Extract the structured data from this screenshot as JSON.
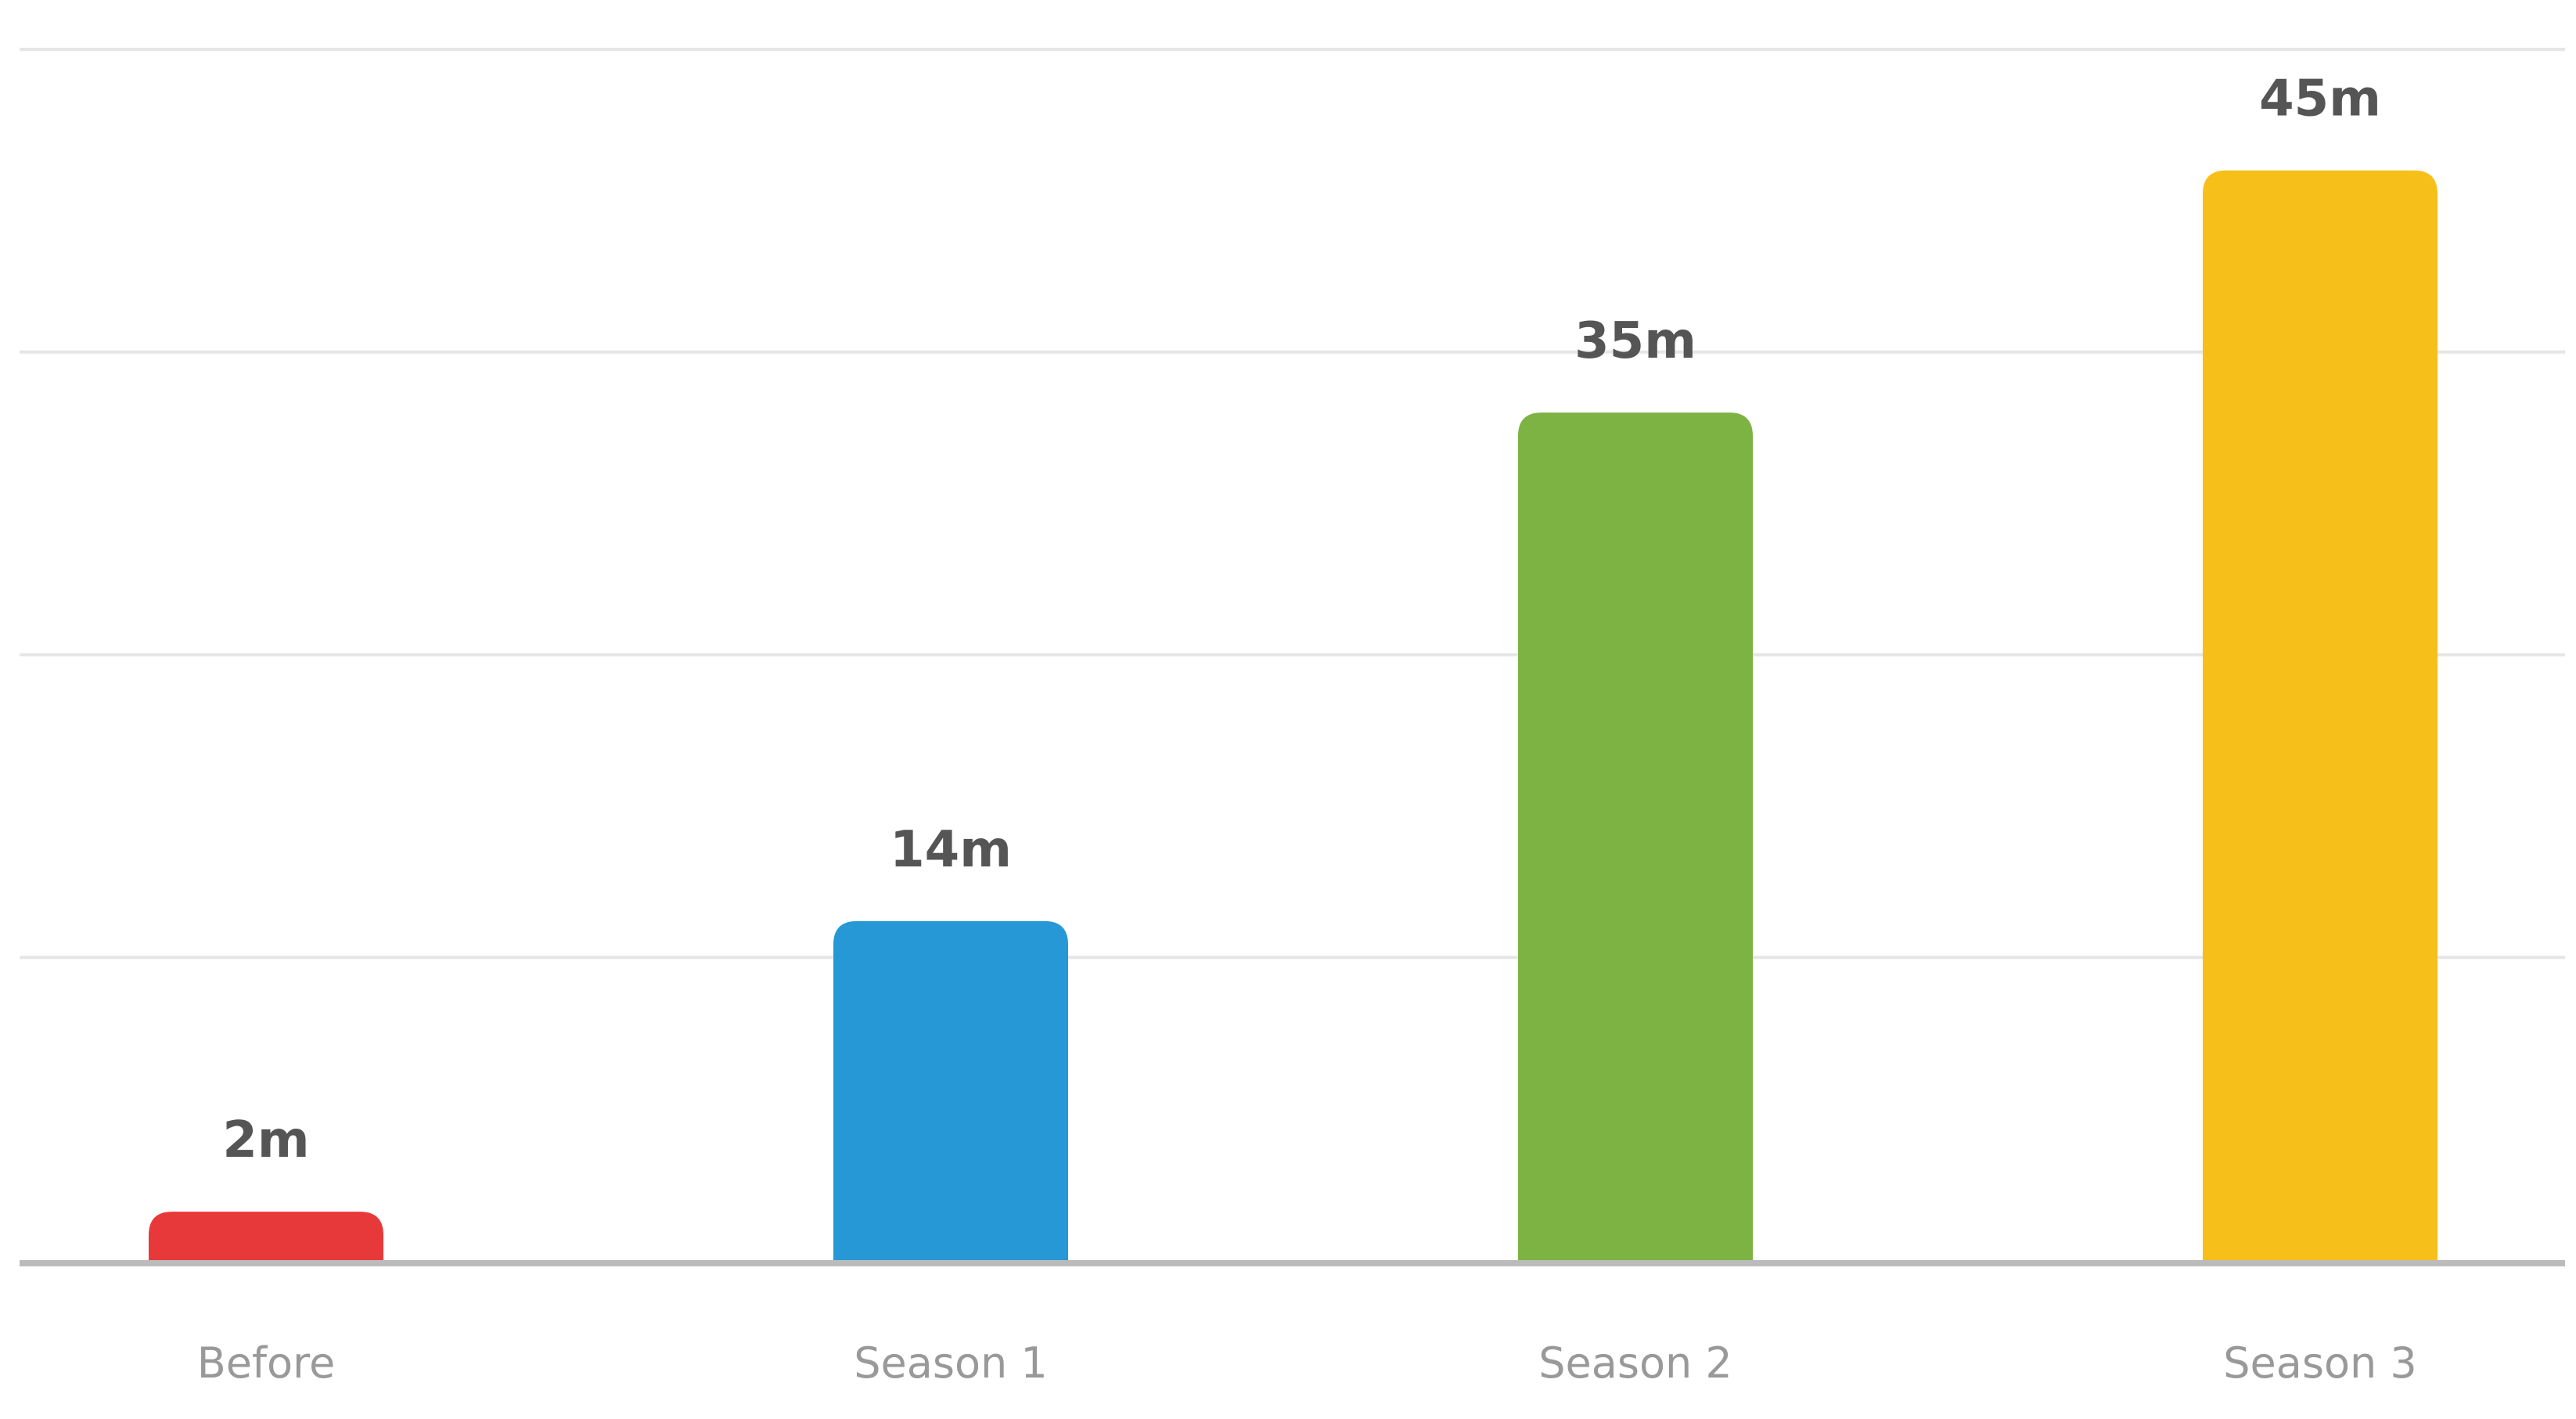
{
  "chart_data": {
    "type": "bar",
    "categories": [
      "Before",
      "Season 1",
      "Season 2",
      "Season 3"
    ],
    "values": [
      2,
      14,
      35,
      45
    ],
    "value_labels": [
      "2m",
      "14m",
      "35m",
      "45m"
    ],
    "colors": [
      "#e8393a",
      "#2698d6",
      "#7cb342",
      "#f6bf1a"
    ],
    "ylim": [
      0,
      50
    ],
    "grid": true,
    "gridlines": [
      12.5,
      25,
      37.5,
      50
    ]
  }
}
